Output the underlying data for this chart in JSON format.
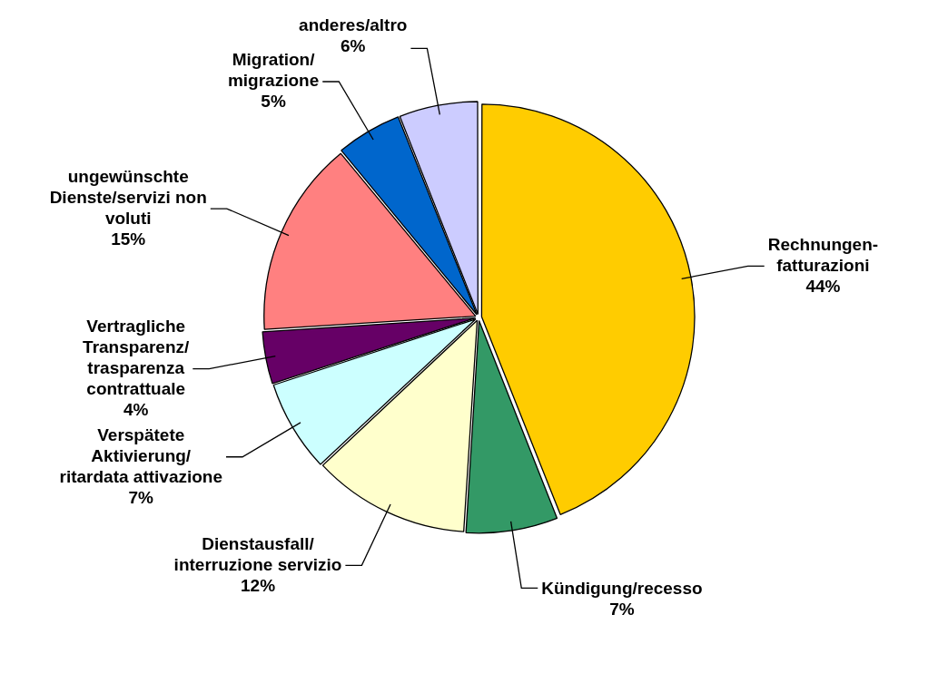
{
  "chart_data": {
    "type": "pie",
    "categories": [
      "Rechnungen-\nfatturazioni",
      "Kündigung/recesso",
      "Dienstausfall/\ninterruzione servizio",
      "Verspätete\nAktivierung/\nritardata attivazione",
      "Vertragliche\nTransparenz/\ntrasparenza\ncontrattuale",
      "ungewünschte\nDienste/servizi non\nvoluti",
      "Migration/\nmigrazione",
      "anderes/altro"
    ],
    "values": [
      44,
      7,
      12,
      7,
      4,
      15,
      5,
      6
    ],
    "colors": [
      "#ffcc00",
      "#339966",
      "#ffffcc",
      "#ccffff",
      "#660066",
      "#ff8080",
      "#0066cc",
      "#ccccff"
    ],
    "value_labels": [
      "44%",
      "7%",
      "12%",
      "7%",
      "4%",
      "15%",
      "5%",
      "6%"
    ],
    "legend": false
  }
}
